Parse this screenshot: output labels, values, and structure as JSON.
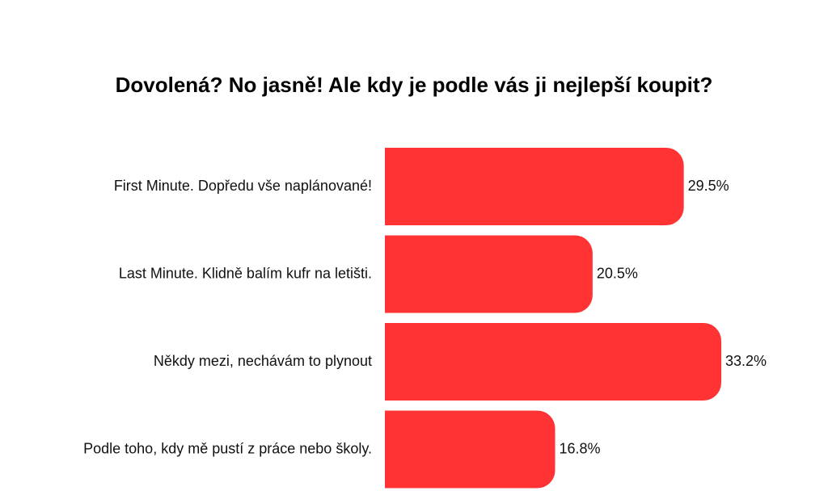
{
  "chart_data": {
    "type": "bar",
    "orientation": "horizontal",
    "title": "Dovolená? No jasně! Ale kdy je podle vás ji nejlepší koupit?",
    "categories": [
      "First Minute. Dopředu vše naplánované!",
      "Last Minute. Klidně balím kufr na letišti.",
      "Někdy mezi, nechávám to plynout",
      "Podle toho, kdy mě pustí z práce nebo školy."
    ],
    "values": [
      29.5,
      20.5,
      33.2,
      16.8
    ],
    "value_labels": [
      "29.5%",
      "20.5%",
      "33.2%",
      "16.8%"
    ],
    "unit": "%",
    "xlabel": "",
    "ylabel": "",
    "xlim": [
      0,
      33.2
    ],
    "grid": false,
    "legend": "none",
    "bar_color": "#ff3333"
  }
}
